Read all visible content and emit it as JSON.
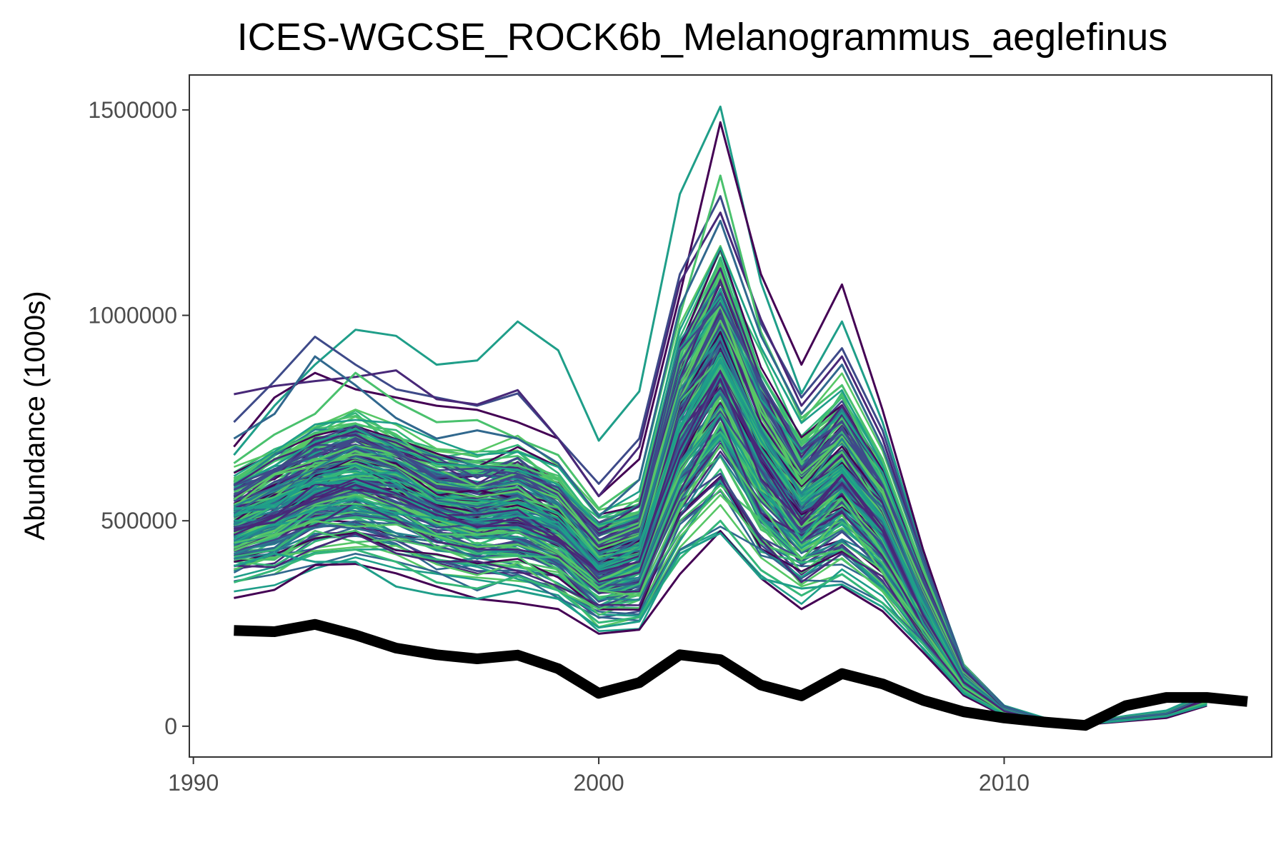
{
  "chart_data": {
    "type": "line",
    "title": "ICES-WGCSE_ROCK6b_Melanogrammus_aeglefinus",
    "xlabel": "",
    "ylabel": "Abundance (1000s)",
    "xlim": [
      1989.9,
      2016.6
    ],
    "ylim": [
      -75000,
      1585000
    ],
    "x_ticks": [
      1990,
      2000,
      2010
    ],
    "x_tick_labels": [
      "1990",
      "2000",
      "2010"
    ],
    "y_ticks": [
      0,
      500000,
      1000000,
      1500000
    ],
    "y_tick_labels": [
      "0",
      "500000",
      "1000000",
      "1500000"
    ],
    "grid": false,
    "legend": "none",
    "colors": {
      "reference": "#000000",
      "palette": [
        "#440154",
        "#482878",
        "#3e4a89",
        "#31688e",
        "#26828e",
        "#1f9e89",
        "#35b779",
        "#4ac16d",
        "#57c766"
      ],
      "border": "#333333",
      "tick_label": "#4d4d4d"
    },
    "x": [
      1991,
      1992,
      1993,
      1994,
      1995,
      1996,
      1997,
      1998,
      1999,
      2000,
      2001,
      2002,
      2003,
      2004,
      2005,
      2006,
      2007,
      2008,
      2009,
      2010,
      2011,
      2012,
      2013,
      2014,
      2015,
      2016
    ],
    "ensemble_extremes": [
      {
        "color": "#1f9e89",
        "values": [
          660000,
          780000,
          880000,
          965000,
          950000,
          880000,
          890000,
          985000,
          915000,
          695000,
          815000,
          1295000,
          1508000,
          1080000,
          810000,
          985000,
          740000,
          420000,
          150000,
          50000,
          20000,
          8000,
          25000,
          38000,
          80000,
          null
        ]
      },
      {
        "color": "#440154",
        "values": [
          680000,
          800000,
          860000,
          820000,
          800000,
          780000,
          770000,
          740000,
          700000,
          560000,
          650000,
          1050000,
          1470000,
          1100000,
          880000,
          1075000,
          770000,
          430000,
          140000,
          45000,
          16000,
          7000,
          20000,
          30000,
          70000,
          null
        ]
      },
      {
        "color": "#3e4a89",
        "values": [
          740000,
          840000,
          948000,
          880000,
          820000,
          800000,
          780000,
          810000,
          700000,
          590000,
          700000,
          1100000,
          1290000,
          980000,
          800000,
          920000,
          720000,
          410000,
          150000,
          48000,
          16000,
          7000,
          22000,
          32000,
          75000,
          null
        ]
      },
      {
        "color": "#482878",
        "values": [
          808000,
          828000,
          840000,
          850000,
          866000,
          796000,
          783000,
          818000,
          700000,
          560000,
          680000,
          1080000,
          1250000,
          990000,
          780000,
          900000,
          700000,
          400000,
          140000,
          46000,
          15000,
          6000,
          20000,
          30000,
          72000,
          null
        ]
      },
      {
        "color": "#440154",
        "values": [
          312000,
          332000,
          392000,
          395000,
          372000,
          340000,
          310000,
          300000,
          285000,
          225000,
          235000,
          370000,
          475000,
          360000,
          285000,
          340000,
          280000,
          180000,
          75000,
          25000,
          9000,
          4000,
          12000,
          20000,
          50000,
          null
        ]
      },
      {
        "color": "#35b779",
        "values": [
          350000,
          380000,
          420000,
          430000,
          400000,
          350000,
          335000,
          365000,
          330000,
          252000,
          265000,
          408000,
          500000,
          380000,
          318000,
          370000,
          300000,
          200000,
          85000,
          30000,
          10000,
          5000,
          15000,
          25000,
          55000,
          null
        ]
      },
      {
        "color": "#1f9e89",
        "values": [
          390000,
          420000,
          400000,
          400000,
          340000,
          320000,
          310000,
          330000,
          310000,
          240000,
          255000,
          420000,
          470000,
          360000,
          335000,
          345000,
          290000,
          190000,
          80000,
          28000,
          10000,
          5000,
          14000,
          24000,
          52000,
          null
        ]
      },
      {
        "color": "#4ac16d",
        "values": [
          640000,
          710000,
          760000,
          860000,
          790000,
          740000,
          745000,
          700000,
          660000,
          530000,
          600000,
          1000000,
          1340000,
          960000,
          750000,
          830000,
          650000,
          380000,
          150000,
          45000,
          16000,
          7000,
          22000,
          32000,
          74000,
          null
        ]
      },
      {
        "color": "#31688e",
        "values": [
          700000,
          760000,
          900000,
          830000,
          750000,
          700000,
          720000,
          700000,
          640000,
          510000,
          600000,
          1020000,
          1230000,
          950000,
          760000,
          880000,
          680000,
          400000,
          145000,
          46000,
          16000,
          7000,
          21000,
          31000,
          72000,
          null
        ]
      }
    ],
    "ensemble_band": {
      "low": [
        340000,
        355000,
        395000,
        400000,
        380000,
        355000,
        335000,
        335000,
        305000,
        235000,
        248000,
        400000,
        490000,
        370000,
        310000,
        355000,
        290000,
        190000,
        80000,
        28000,
        9000,
        4000,
        13000,
        22000,
        50000,
        null
      ],
      "mid": [
        490000,
        525000,
        580000,
        600000,
        575000,
        525000,
        505000,
        520000,
        475000,
        380000,
        410000,
        700000,
        850000,
        650000,
        520000,
        600000,
        480000,
        280000,
        110000,
        38000,
        13000,
        6000,
        17000,
        28000,
        65000,
        null
      ],
      "high": [
        640000,
        700000,
        760000,
        790000,
        740000,
        700000,
        690000,
        700000,
        650000,
        530000,
        580000,
        1000000,
        1200000,
        930000,
        740000,
        850000,
        680000,
        400000,
        150000,
        50000,
        18000,
        8000,
        24000,
        36000,
        80000,
        null
      ],
      "member_count": 220
    },
    "series": [
      {
        "values": [
          233000,
          230000,
          248000,
          222000,
          190000,
          174000,
          164000,
          173000,
          140000,
          80000,
          106000,
          174000,
          162000,
          100000,
          74000,
          128000,
          103000,
          63000,
          35000,
          20000,
          10000,
          2000,
          50000,
          70000,
          70000,
          60000
        ]
      }
    ]
  }
}
